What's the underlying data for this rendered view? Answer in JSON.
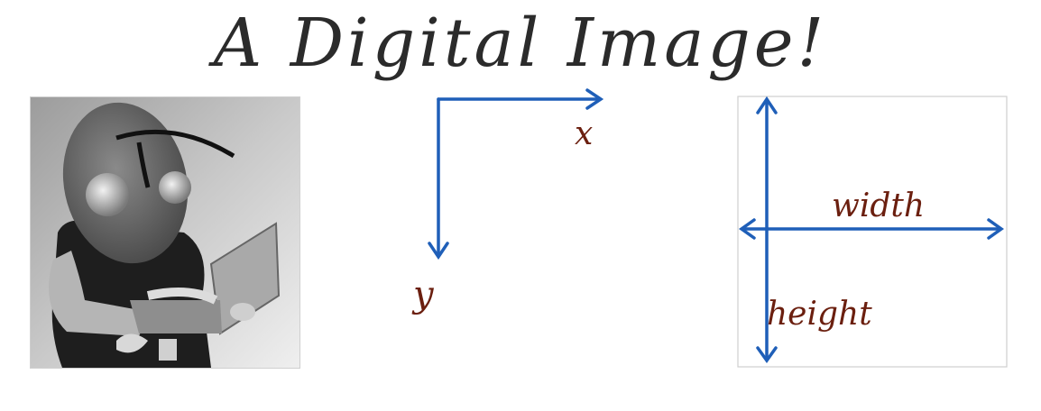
{
  "slide": {
    "title": "A Digital Image!"
  },
  "coordinates": {
    "x_label": "x",
    "y_label": "y"
  },
  "dimensions": {
    "width_label": "width",
    "height_label": "height"
  },
  "colors": {
    "arrow": "#1f5fb8",
    "handwriting": "#6b1f0f",
    "title": "#2b2b2b"
  }
}
